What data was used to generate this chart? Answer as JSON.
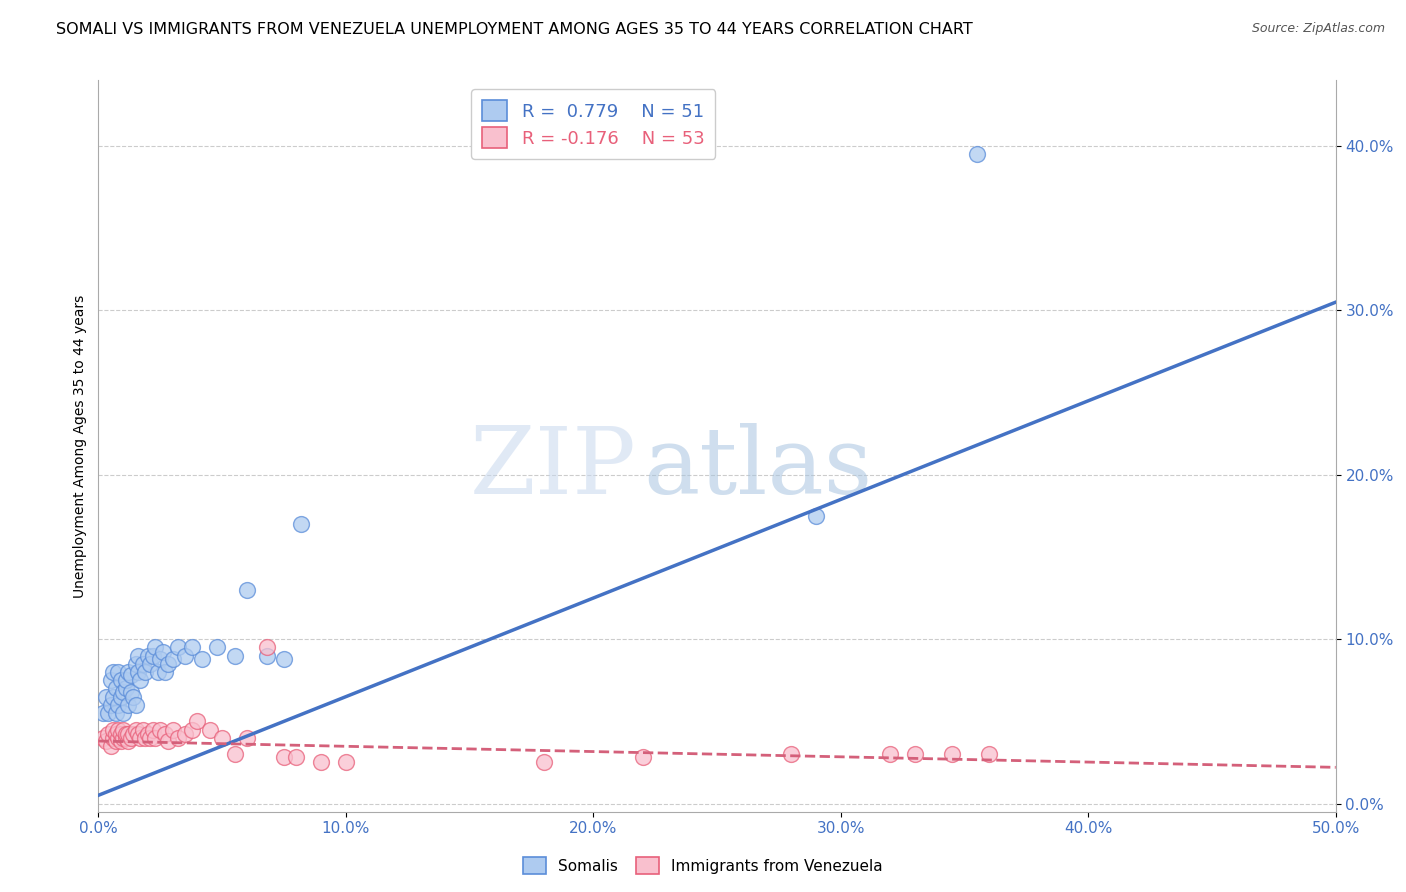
{
  "title": "SOMALI VS IMMIGRANTS FROM VENEZUELA UNEMPLOYMENT AMONG AGES 35 TO 44 YEARS CORRELATION CHART",
  "source": "Source: ZipAtlas.com",
  "ylabel": "Unemployment Among Ages 35 to 44 years",
  "xlim": [
    0.0,
    0.5
  ],
  "ylim": [
    -0.005,
    0.44
  ],
  "yticks": [
    0.0,
    0.1,
    0.2,
    0.3,
    0.4
  ],
  "xticks": [
    0.0,
    0.1,
    0.2,
    0.3,
    0.4,
    0.5
  ],
  "background_color": "#ffffff",
  "grid_color": "#cccccc",
  "somali_color": "#aecbf0",
  "venezuela_color": "#f9c0ce",
  "somali_edge_color": "#5b8dd9",
  "venezuela_edge_color": "#e8607a",
  "somali_line_color": "#4472c4",
  "venezuela_line_color": "#d4607a",
  "tick_color": "#4472c4",
  "somali_line_x": [
    0.0,
    0.5
  ],
  "somali_line_y": [
    0.005,
    0.305
  ],
  "venezuela_line_x": [
    0.0,
    0.5
  ],
  "venezuela_line_y": [
    0.038,
    0.022
  ],
  "somali_x": [
    0.002,
    0.003,
    0.004,
    0.005,
    0.005,
    0.006,
    0.006,
    0.007,
    0.007,
    0.008,
    0.008,
    0.009,
    0.009,
    0.01,
    0.01,
    0.011,
    0.011,
    0.012,
    0.012,
    0.013,
    0.013,
    0.014,
    0.015,
    0.015,
    0.016,
    0.016,
    0.017,
    0.018,
    0.019,
    0.02,
    0.021,
    0.022,
    0.023,
    0.024,
    0.025,
    0.026,
    0.027,
    0.028,
    0.03,
    0.032,
    0.035,
    0.038,
    0.042,
    0.048,
    0.055,
    0.06,
    0.068,
    0.075,
    0.082,
    0.29,
    0.355
  ],
  "somali_y": [
    0.055,
    0.065,
    0.055,
    0.075,
    0.06,
    0.065,
    0.08,
    0.055,
    0.07,
    0.06,
    0.08,
    0.065,
    0.075,
    0.055,
    0.068,
    0.07,
    0.075,
    0.06,
    0.08,
    0.068,
    0.078,
    0.065,
    0.085,
    0.06,
    0.09,
    0.08,
    0.075,
    0.085,
    0.08,
    0.09,
    0.085,
    0.09,
    0.095,
    0.08,
    0.088,
    0.092,
    0.08,
    0.085,
    0.088,
    0.095,
    0.09,
    0.095,
    0.088,
    0.095,
    0.09,
    0.13,
    0.09,
    0.088,
    0.17,
    0.175,
    0.395
  ],
  "venezuela_x": [
    0.002,
    0.003,
    0.004,
    0.005,
    0.006,
    0.006,
    0.007,
    0.007,
    0.008,
    0.008,
    0.009,
    0.009,
    0.01,
    0.01,
    0.011,
    0.011,
    0.012,
    0.012,
    0.013,
    0.014,
    0.015,
    0.016,
    0.017,
    0.018,
    0.019,
    0.02,
    0.021,
    0.022,
    0.023,
    0.025,
    0.027,
    0.028,
    0.03,
    0.032,
    0.035,
    0.038,
    0.04,
    0.045,
    0.05,
    0.055,
    0.06,
    0.068,
    0.075,
    0.08,
    0.09,
    0.1,
    0.18,
    0.22,
    0.28,
    0.32,
    0.33,
    0.345,
    0.36
  ],
  "venezuela_y": [
    0.04,
    0.038,
    0.042,
    0.035,
    0.04,
    0.045,
    0.038,
    0.042,
    0.04,
    0.045,
    0.038,
    0.042,
    0.04,
    0.045,
    0.04,
    0.042,
    0.038,
    0.042,
    0.04,
    0.042,
    0.045,
    0.042,
    0.04,
    0.045,
    0.04,
    0.042,
    0.04,
    0.045,
    0.04,
    0.045,
    0.042,
    0.038,
    0.045,
    0.04,
    0.042,
    0.045,
    0.05,
    0.045,
    0.04,
    0.03,
    0.04,
    0.095,
    0.028,
    0.028,
    0.025,
    0.025,
    0.025,
    0.028,
    0.03,
    0.03,
    0.03,
    0.03,
    0.03
  ],
  "watermark_zip": "ZIP",
  "watermark_atlas": "atlas",
  "title_fontsize": 11.5,
  "axis_label_fontsize": 10,
  "tick_fontsize": 11,
  "legend_fontsize": 13
}
